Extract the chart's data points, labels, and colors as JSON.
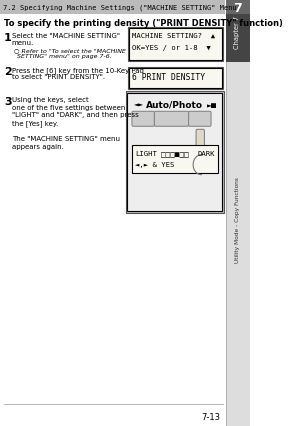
{
  "page_title": "7.2 Specifying Machine Settings (\"MACHINE SETTING\" Menu)",
  "chapter_tab": "Chapter 7",
  "side_tab": "Utility Mode - Copy Functions",
  "page_num": "7-13",
  "section_num": "7",
  "heading": "To specify the printing density (\"PRINT DENSITY\" function)",
  "step1_num": "1",
  "step1_text1": "Select the \"MACHINE SETTING\"",
  "step1_text2": "menu.",
  "step1_sub": "Refer to \"To select the \"MACHINE",
  "step1_sub2": "SETTING\" menu\" on page 7-6.",
  "step2_num": "2",
  "step2_text1": "Press the [6] key from the 10-Key Pad",
  "step2_text2": "to select \"PRINT DENSITY\".",
  "step3_num": "3",
  "step3_lines": [
    "Using the keys, select",
    "one of the five settings between",
    "\"LIGHT\" and \"DARK\", and then press",
    "the [Yes] key.",
    "",
    "The \"MACHINE SETTING\" menu",
    "appears again."
  ],
  "disp1_line1": "MACHINE SETTING?",
  "disp1_line2": "OK=YES / or 1-8",
  "disp2_line1": "6 PRINT DENSITY",
  "disp3_top": "Auto/Photo",
  "disp3_bot1_left": "LIGHT",
  "disp3_bot1_right": "DARK",
  "disp3_bot2": "& YES",
  "bg_color": "#ffffff",
  "display_bg": "#f8f8f0",
  "display_border": "#000000",
  "outer_bg": "#cccccc",
  "btn_color": "#cccccc",
  "hand_color": "#e0d8c8"
}
